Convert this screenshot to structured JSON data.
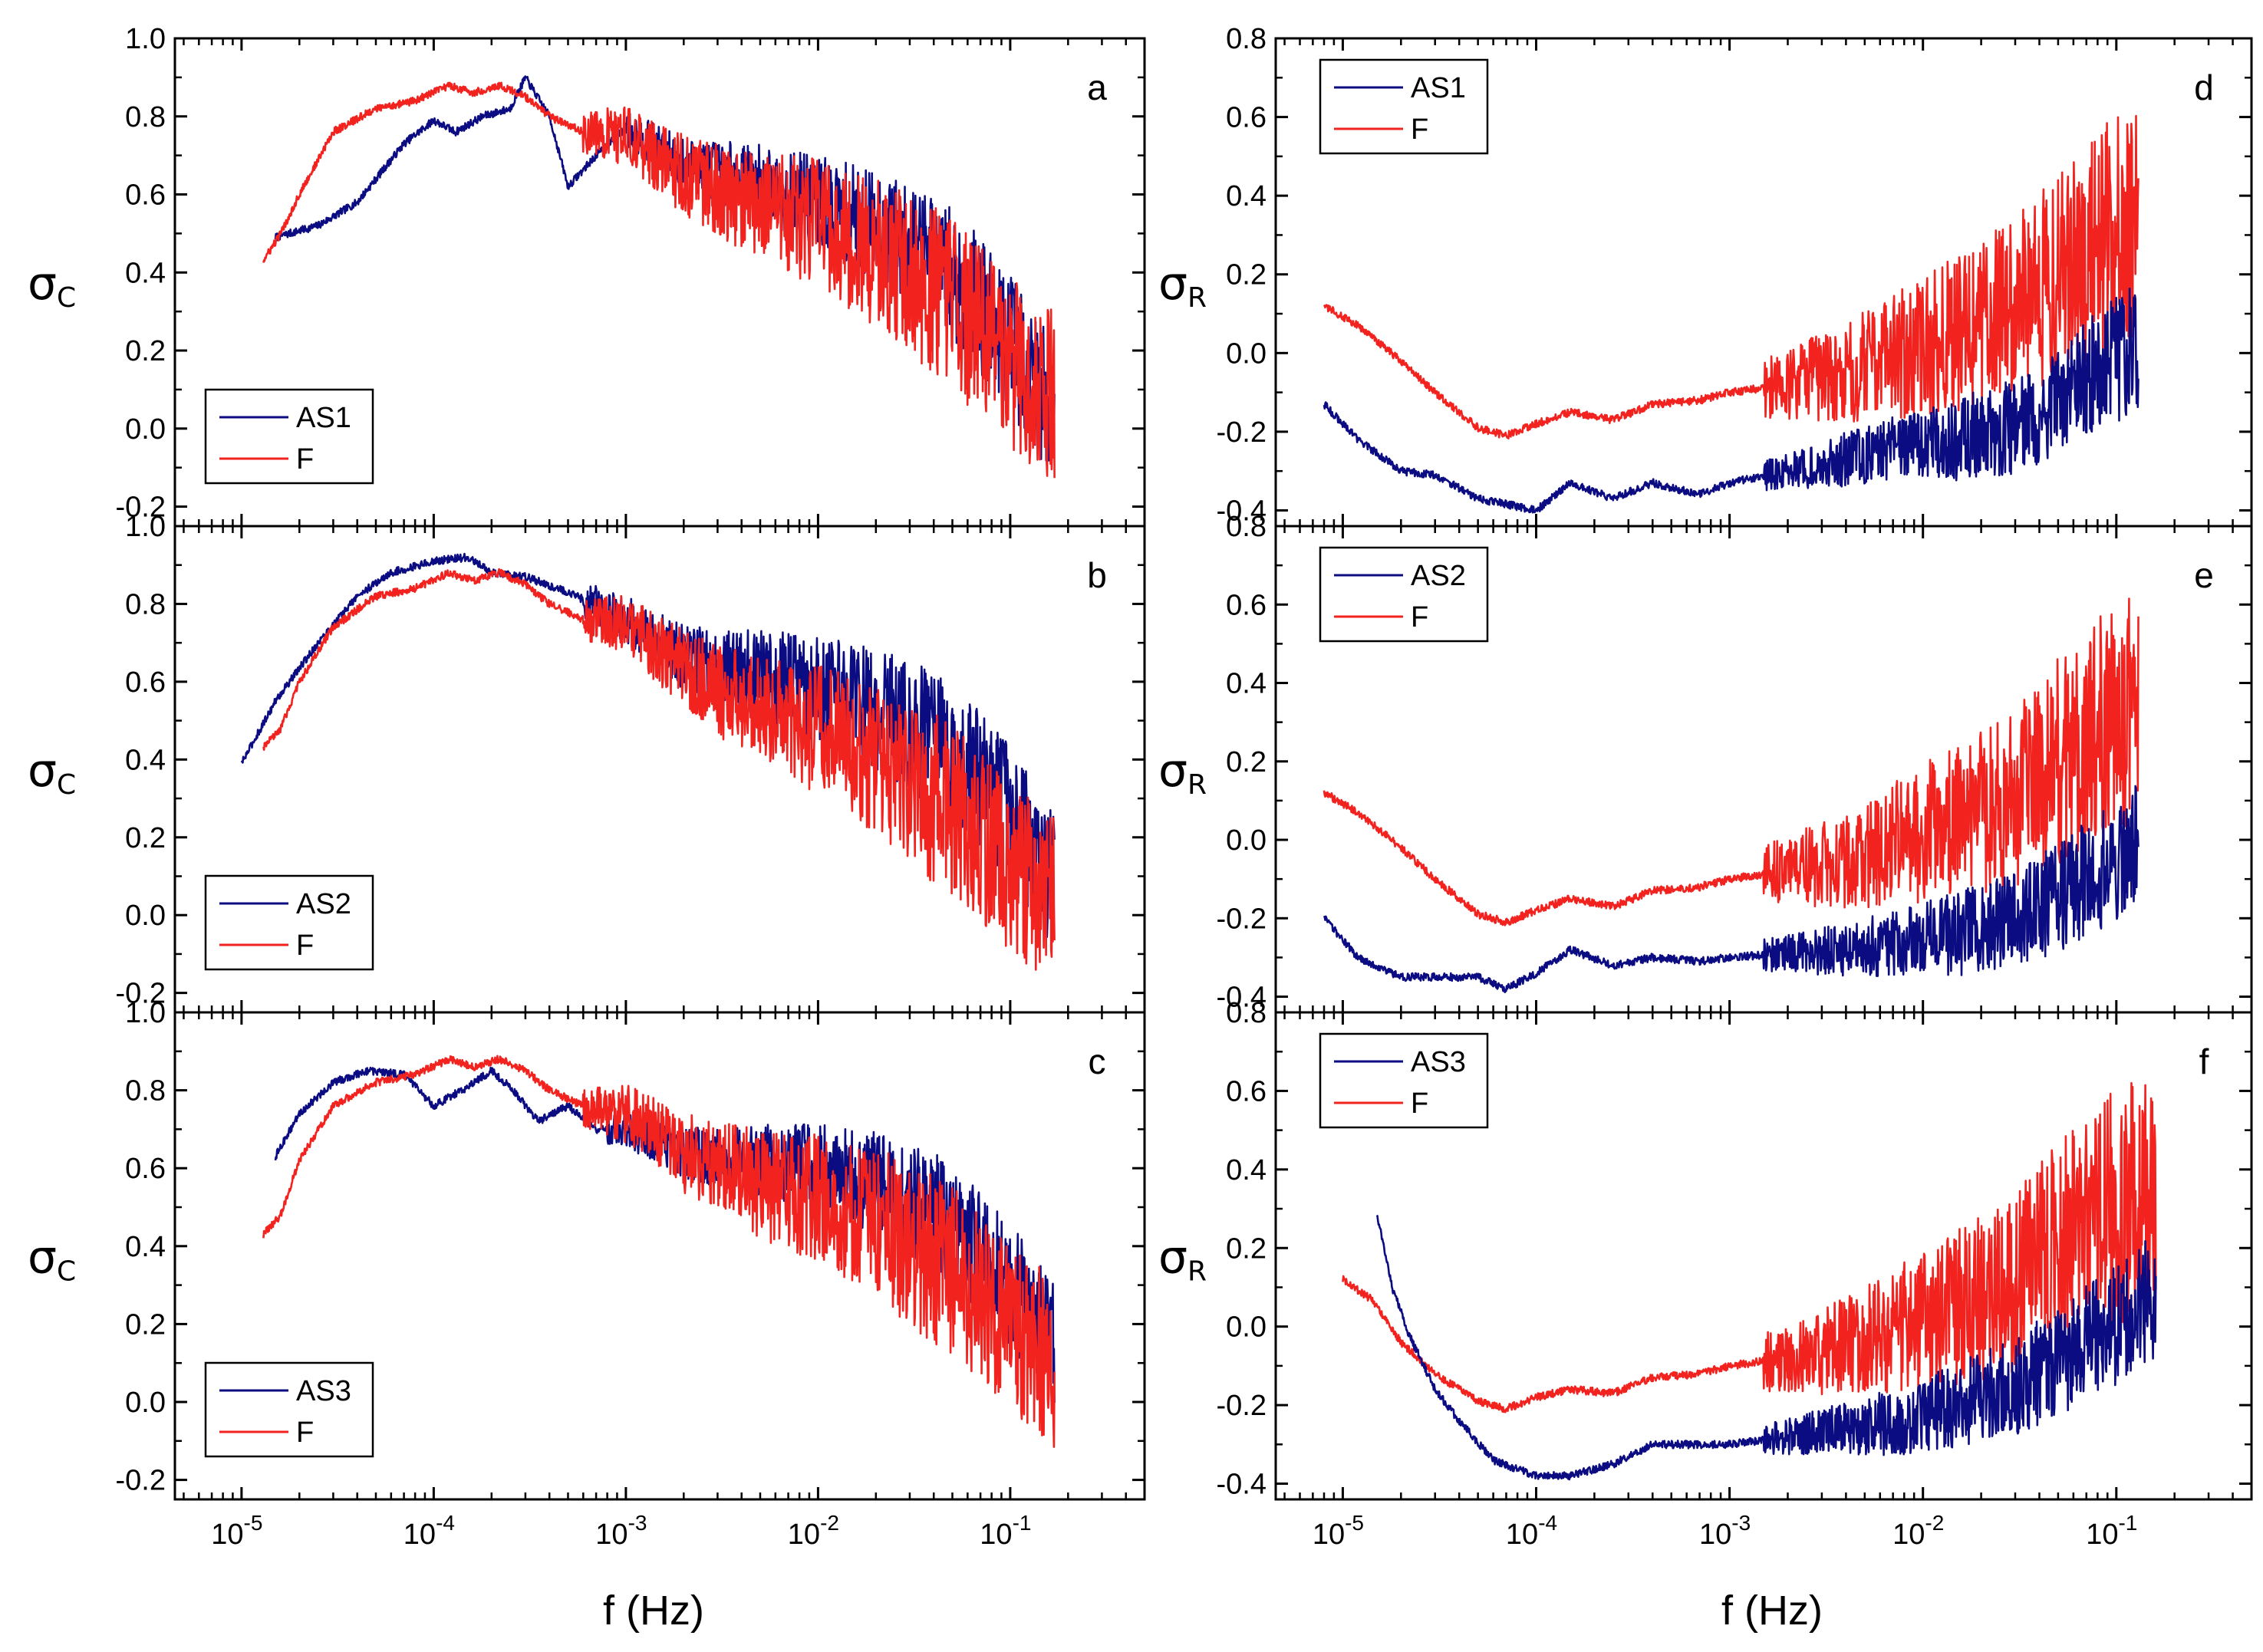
{
  "figure": {
    "x_axis_label": "f (Hz)",
    "colors": {
      "AS": "#0b0b82",
      "F": "#f2231f",
      "F_band": "#e01414",
      "axis": "#000000"
    }
  },
  "chart_data": [
    {
      "type": "line",
      "panel": "a",
      "ylabel_symbol": "σ",
      "ylabel_sub": "C",
      "xscale": "log",
      "xlim": [
        4.5e-06,
        0.5
      ],
      "ylim": [
        -0.25,
        1.0
      ],
      "yticks": [
        -0.2,
        0.0,
        0.2,
        0.4,
        0.6,
        0.8,
        1.0
      ],
      "ytick_labels": [
        "-0.2",
        "0.0",
        "0.2",
        "0.4",
        "0.6",
        "0.8",
        "1.0"
      ],
      "xticks": [
        1e-05,
        0.0001,
        0.001,
        0.01,
        0.1
      ],
      "xtick_labels": [
        "10-5",
        "10-4",
        "10-3",
        "10-2",
        "10-1"
      ],
      "legend": [
        "AS1",
        "F"
      ],
      "legend_position": "bottom-left",
      "series": [
        {
          "name": "AS1",
          "x": [
            1.5e-05,
            2.5e-05,
            4e-05,
            7e-05,
            0.0001,
            0.00013,
            0.00018,
            0.00025,
            0.0003,
            0.0004,
            0.0005,
            0.0007,
            0.001,
            0.002,
            0.005,
            0.01,
            0.02,
            0.05,
            0.1,
            0.17
          ],
          "y": [
            0.49,
            0.52,
            0.58,
            0.73,
            0.79,
            0.76,
            0.8,
            0.82,
            0.9,
            0.8,
            0.62,
            0.7,
            0.77,
            0.68,
            0.63,
            0.58,
            0.52,
            0.4,
            0.22,
            0.05
          ],
          "noise_after": 0.001,
          "noise_amp": 0.18
        },
        {
          "name": "F",
          "x": [
            1.3e-05,
            1.6e-05,
            2e-05,
            3e-05,
            5e-05,
            8e-05,
            0.00012,
            0.00016,
            0.00022,
            0.0003,
            0.0004,
            0.0006,
            0.001,
            0.002,
            0.005,
            0.01,
            0.02,
            0.05,
            0.1,
            0.17
          ],
          "y": [
            0.43,
            0.5,
            0.6,
            0.76,
            0.82,
            0.84,
            0.88,
            0.86,
            0.88,
            0.85,
            0.8,
            0.76,
            0.75,
            0.65,
            0.57,
            0.53,
            0.45,
            0.32,
            0.17,
            0.08
          ],
          "noise_after": 0.0006,
          "noise_amp": 0.22
        }
      ]
    },
    {
      "type": "line",
      "panel": "b",
      "ylabel_symbol": "σ",
      "ylabel_sub": "C",
      "xscale": "log",
      "xlim": [
        4.5e-06,
        0.5
      ],
      "ylim": [
        -0.25,
        1.0
      ],
      "yticks": [
        -0.2,
        0.0,
        0.2,
        0.4,
        0.6,
        0.8,
        1.0
      ],
      "ytick_labels": [
        "-0.2",
        "0.0",
        "0.2",
        "0.4",
        "0.6",
        "0.8",
        "1.0"
      ],
      "xticks": [
        1e-05,
        0.0001,
        0.001,
        0.01,
        0.1
      ],
      "xtick_labels": [
        "10-5",
        "10-4",
        "10-3",
        "10-2",
        "10-1"
      ],
      "legend": [
        "AS2",
        "F"
      ],
      "legend_position": "bottom-left",
      "series": [
        {
          "name": "AS2",
          "x": [
            1e-05,
            1.5e-05,
            2.5e-05,
            4e-05,
            6e-05,
            0.0001,
            0.00015,
            0.0002,
            0.0003,
            0.0005,
            0.001,
            0.002,
            0.005,
            0.01,
            0.02,
            0.05,
            0.1,
            0.17
          ],
          "y": [
            0.39,
            0.55,
            0.7,
            0.82,
            0.88,
            0.91,
            0.92,
            0.88,
            0.87,
            0.83,
            0.76,
            0.66,
            0.62,
            0.58,
            0.53,
            0.42,
            0.26,
            0.08
          ],
          "noise_after": 0.0006,
          "noise_amp": 0.18
        },
        {
          "name": "F",
          "x": [
            1.3e-05,
            1.6e-05,
            2e-05,
            3e-05,
            5e-05,
            8e-05,
            0.00012,
            0.00016,
            0.00022,
            0.0003,
            0.0004,
            0.0006,
            0.001,
            0.002,
            0.005,
            0.01,
            0.02,
            0.05,
            0.1,
            0.17
          ],
          "y": [
            0.43,
            0.48,
            0.6,
            0.74,
            0.82,
            0.84,
            0.88,
            0.86,
            0.88,
            0.85,
            0.8,
            0.76,
            0.75,
            0.63,
            0.52,
            0.48,
            0.4,
            0.27,
            0.12,
            0.05
          ],
          "noise_after": 0.0006,
          "noise_amp": 0.22
        }
      ]
    },
    {
      "type": "line",
      "panel": "c",
      "ylabel_symbol": "σ",
      "ylabel_sub": "C",
      "xscale": "log",
      "xlim": [
        4.5e-06,
        0.5
      ],
      "ylim": [
        -0.25,
        1.0
      ],
      "yticks": [
        -0.2,
        0.0,
        0.2,
        0.4,
        0.6,
        0.8,
        1.0
      ],
      "ytick_labels": [
        "-0.2",
        "0.0",
        "0.2",
        "0.4",
        "0.6",
        "0.8",
        "1.0"
      ],
      "xticks": [
        1e-05,
        0.0001,
        0.001,
        0.01,
        0.1
      ],
      "xtick_labels": [
        "10-5",
        "10-4",
        "10-3",
        "10-2",
        "10-1"
      ],
      "legend": [
        "AS3",
        "F"
      ],
      "legend_position": "bottom-left",
      "series": [
        {
          "name": "AS3",
          "x": [
            1.5e-05,
            2e-05,
            3e-05,
            4.5e-05,
            7e-05,
            0.0001,
            0.00014,
            0.0002,
            0.00026,
            0.00035,
            0.0005,
            0.0007,
            0.001,
            0.002,
            0.005,
            0.01,
            0.02,
            0.05,
            0.1,
            0.17
          ],
          "y": [
            0.63,
            0.74,
            0.82,
            0.85,
            0.84,
            0.76,
            0.8,
            0.85,
            0.8,
            0.72,
            0.76,
            0.7,
            0.7,
            0.64,
            0.62,
            0.6,
            0.56,
            0.46,
            0.3,
            0.15
          ],
          "noise_after": 0.0008,
          "noise_amp": 0.16
        },
        {
          "name": "F",
          "x": [
            1.3e-05,
            1.6e-05,
            2e-05,
            3e-05,
            5e-05,
            8e-05,
            0.00012,
            0.00016,
            0.00022,
            0.0003,
            0.0004,
            0.0006,
            0.001,
            0.002,
            0.005,
            0.01,
            0.02,
            0.05,
            0.1,
            0.17
          ],
          "y": [
            0.43,
            0.48,
            0.62,
            0.76,
            0.82,
            0.84,
            0.88,
            0.86,
            0.88,
            0.85,
            0.8,
            0.76,
            0.74,
            0.64,
            0.56,
            0.52,
            0.46,
            0.34,
            0.18,
            0.1
          ],
          "noise_after": 0.0006,
          "noise_amp": 0.22
        }
      ]
    },
    {
      "type": "line",
      "panel": "d",
      "ylabel_symbol": "σ",
      "ylabel_sub": "R",
      "xscale": "log",
      "xlim": [
        4.5e-06,
        0.5
      ],
      "ylim": [
        -0.44,
        0.8
      ],
      "yticks": [
        -0.4,
        -0.2,
        0.0,
        0.2,
        0.4,
        0.6,
        0.8
      ],
      "ytick_labels": [
        "-0.4",
        "-0.2",
        "0.0",
        "0.2",
        "0.4",
        "0.6",
        "0.8"
      ],
      "xticks": [
        1e-05,
        0.0001,
        0.001,
        0.01,
        0.1
      ],
      "xtick_labels": [
        "10-5",
        "10-4",
        "10-3",
        "10-2",
        "10-1"
      ],
      "legend": [
        "AS1",
        "F"
      ],
      "legend_position": "top-left",
      "series": [
        {
          "name": "AS1",
          "x": [
            8e-06,
            1.2e-05,
            2e-05,
            3e-05,
            5e-05,
            8e-05,
            0.0001,
            0.00015,
            0.00025,
            0.0004,
            0.0007,
            0.001,
            0.002,
            0.004,
            0.008,
            0.015,
            0.03,
            0.05,
            0.08,
            0.13
          ],
          "y": [
            -0.13,
            -0.22,
            -0.3,
            -0.31,
            -0.37,
            -0.39,
            -0.4,
            -0.33,
            -0.37,
            -0.33,
            -0.36,
            -0.33,
            -0.3,
            -0.27,
            -0.24,
            -0.22,
            -0.18,
            -0.12,
            -0.05,
            0.02
          ],
          "noise_after": 0.0015,
          "noise_amp": 0.16
        },
        {
          "name": "F",
          "x": [
            8e-06,
            1.2e-05,
            2e-05,
            3e-05,
            5e-05,
            7e-05,
            0.0001,
            0.00015,
            0.00025,
            0.0004,
            0.0007,
            0.001,
            0.002,
            0.004,
            0.008,
            0.015,
            0.03,
            0.05,
            0.08,
            0.13
          ],
          "y": [
            0.12,
            0.07,
            -0.02,
            -0.1,
            -0.19,
            -0.21,
            -0.18,
            -0.15,
            -0.17,
            -0.13,
            -0.12,
            -0.1,
            -0.08,
            -0.05,
            0.0,
            0.05,
            0.12,
            0.2,
            0.28,
            0.35
          ],
          "noise_after": 0.0015,
          "noise_amp": 0.3
        }
      ]
    },
    {
      "type": "line",
      "panel": "e",
      "ylabel_symbol": "σ",
      "ylabel_sub": "R",
      "xscale": "log",
      "xlim": [
        4.5e-06,
        0.5
      ],
      "ylim": [
        -0.44,
        0.8
      ],
      "yticks": [
        -0.4,
        -0.2,
        0.0,
        0.2,
        0.4,
        0.6,
        0.8
      ],
      "ytick_labels": [
        "-0.4",
        "-0.2",
        "0.0",
        "0.2",
        "0.4",
        "0.6",
        "0.8"
      ],
      "xticks": [
        1e-05,
        0.0001,
        0.001,
        0.01,
        0.1
      ],
      "xtick_labels": [
        "10-5",
        "10-4",
        "10-3",
        "10-2",
        "10-1"
      ],
      "legend": [
        "AS2",
        "F"
      ],
      "legend_position": "top-left",
      "series": [
        {
          "name": "AS2",
          "x": [
            8e-06,
            1.2e-05,
            2e-05,
            3e-05,
            5e-05,
            7e-05,
            0.0001,
            0.00015,
            0.00025,
            0.0004,
            0.0007,
            0.001,
            0.002,
            0.004,
            0.008,
            0.015,
            0.03,
            0.05,
            0.08,
            0.13
          ],
          "y": [
            -0.2,
            -0.3,
            -0.35,
            -0.35,
            -0.35,
            -0.38,
            -0.34,
            -0.28,
            -0.32,
            -0.3,
            -0.31,
            -0.3,
            -0.29,
            -0.28,
            -0.26,
            -0.24,
            -0.2,
            -0.15,
            -0.08,
            0.0
          ],
          "noise_after": 0.0015,
          "noise_amp": 0.16
        },
        {
          "name": "F",
          "x": [
            8e-06,
            1.2e-05,
            2e-05,
            3e-05,
            5e-05,
            7e-05,
            0.0001,
            0.00015,
            0.00025,
            0.0004,
            0.0007,
            0.001,
            0.002,
            0.004,
            0.008,
            0.015,
            0.03,
            0.05,
            0.08,
            0.13
          ],
          "y": [
            0.12,
            0.07,
            -0.02,
            -0.1,
            -0.19,
            -0.21,
            -0.18,
            -0.15,
            -0.17,
            -0.13,
            -0.12,
            -0.1,
            -0.08,
            -0.05,
            0.0,
            0.05,
            0.12,
            0.2,
            0.28,
            0.35
          ],
          "noise_after": 0.0015,
          "noise_amp": 0.3
        }
      ]
    },
    {
      "type": "line",
      "panel": "f",
      "ylabel_symbol": "σ",
      "ylabel_sub": "R",
      "xscale": "log",
      "xlim": [
        4.5e-06,
        0.5
      ],
      "ylim": [
        -0.44,
        0.8
      ],
      "yticks": [
        -0.4,
        -0.2,
        0.0,
        0.2,
        0.4,
        0.6,
        0.8
      ],
      "ytick_labels": [
        "-0.4",
        "-0.2",
        "0.0",
        "0.2",
        "0.4",
        "0.6",
        "0.8"
      ],
      "xticks": [
        1e-05,
        0.0001,
        0.001,
        0.01,
        0.1
      ],
      "xtick_labels": [
        "10-5",
        "10-4",
        "10-3",
        "10-2",
        "10-1"
      ],
      "legend": [
        "AS3",
        "F"
      ],
      "legend_position": "top-left",
      "series": [
        {
          "name": "AS3",
          "x": [
            1.5e-05,
            1.8e-05,
            2.2e-05,
            3e-05,
            4e-05,
            6e-05,
            0.0001,
            0.00015,
            0.00025,
            0.0004,
            0.0007,
            0.001,
            0.002,
            0.004,
            0.008,
            0.015,
            0.03,
            0.05,
            0.08,
            0.16
          ],
          "y": [
            0.29,
            0.1,
            -0.02,
            -0.16,
            -0.24,
            -0.34,
            -0.38,
            -0.38,
            -0.35,
            -0.3,
            -0.3,
            -0.3,
            -0.28,
            -0.26,
            -0.24,
            -0.2,
            -0.15,
            -0.09,
            -0.02,
            0.08
          ],
          "noise_after": 0.0015,
          "noise_amp": 0.16
        },
        {
          "name": "F",
          "x": [
            1e-05,
            1.4e-05,
            2e-05,
            3e-05,
            5e-05,
            7e-05,
            0.0001,
            0.00015,
            0.00025,
            0.0004,
            0.0007,
            0.001,
            0.002,
            0.004,
            0.008,
            0.015,
            0.03,
            0.05,
            0.08,
            0.16
          ],
          "y": [
            0.12,
            0.07,
            -0.04,
            -0.12,
            -0.19,
            -0.21,
            -0.18,
            -0.16,
            -0.17,
            -0.13,
            -0.12,
            -0.1,
            -0.08,
            -0.05,
            0.0,
            0.05,
            0.12,
            0.2,
            0.28,
            0.35
          ],
          "noise_after": 0.0015,
          "noise_amp": 0.3
        }
      ]
    }
  ]
}
